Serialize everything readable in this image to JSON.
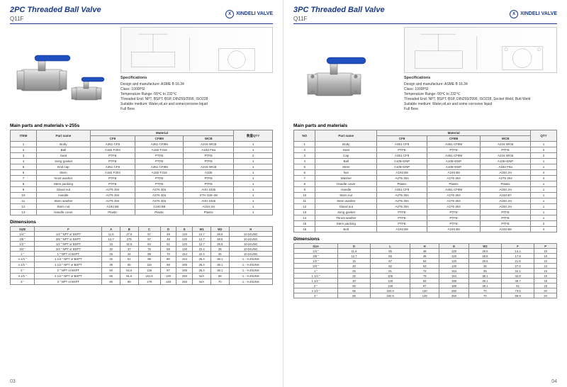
{
  "brand": {
    "logo": "X",
    "name": "XINDELI VALVE"
  },
  "colors": {
    "primary": "#1a3a8a",
    "metal": "#b8b8b8",
    "metal_light": "#d8d8d8",
    "metal_dark": "#888",
    "handle": "#2050c0"
  },
  "left": {
    "title": "2PC Threaded Ball Valve",
    "subtitle": "Q11F",
    "spec_title": "Specifications",
    "specs": [
      "Design and manufacture: ASME B 16.34",
      "Class: 1000PSI",
      "Temperature Range:-50℃ to 232℃",
      "Threaded End: NPT, BSPT, BSP, DIN259/2999, ISO228",
      "Suitable medium: Water,oil,air and somecorrosive liquid",
      "Full Bore"
    ],
    "parts_title": "Main parts and materials v-255s",
    "parts_headers": [
      "ITEM",
      "Part name",
      "CF8",
      "CF8M",
      "WCB",
      "数量QTY"
    ],
    "parts_rows": [
      [
        "1",
        "Body",
        "A351 CF8",
        "A351 CF8M",
        "A216 WCB",
        "1"
      ],
      [
        "2",
        "Ball",
        "A182 F304",
        "A182 F316",
        "A182 F6a",
        "1"
      ],
      [
        "3",
        "Seat",
        "PTFE",
        "PTFE",
        "PTFE",
        "2"
      ],
      [
        "4",
        "Joing gasket",
        "PTFE",
        "PTFE",
        "PTFE",
        "1"
      ],
      [
        "5",
        "End cap",
        "A351 CF8",
        "A351 CF8M",
        "A216 WCB",
        "1"
      ],
      [
        "6",
        "Stem",
        "A182 F304",
        "A182 F316",
        "A105",
        "1"
      ],
      [
        "7",
        "hrust washer",
        "PTFE",
        "PTFE",
        "PTFE",
        "1"
      ],
      [
        "8",
        "Stem packing",
        "PTFE",
        "PTFE",
        "PTFE",
        "1"
      ],
      [
        "9",
        "Gland nut",
        "A276 304",
        "A276 304",
        "AISI 1035",
        "1"
      ],
      [
        "10",
        "Handle",
        "A276 304",
        "A276 304",
        "XTH 330–08",
        "1"
      ],
      [
        "11",
        "Stem washer",
        "A276 304",
        "A276 304",
        "AISI 1025",
        "1"
      ],
      [
        "12",
        "Stem nut",
        "A193 B8",
        "A193 B8",
        "A194 2H",
        "1"
      ],
      [
        "13",
        "Handle cover",
        "Plastic",
        "Plastic",
        "Plastic",
        "1"
      ]
    ],
    "dim_title": "Dimensions",
    "dim_headers": [
      "SIZE",
      "F",
      "A",
      "B",
      "C",
      "D",
      "E",
      "W1",
      "W2",
      "H"
    ],
    "dim_rows": [
      [
        "1/4 \"",
        "1/4 \" NPT or BSPT",
        "11.6",
        "27.5",
        "57",
        "49",
        "120",
        "12.7",
        "28.5",
        "10-24UNC"
      ],
      [
        "3/8 \"",
        "3/8 \" NPT or BSPT",
        "12.7",
        "275",
        "57",
        "49",
        "120",
        "12.7",
        "28.5",
        "10-24UNC"
      ],
      [
        "1/2 \"",
        "1/2 \" NPT or BSPT",
        "15",
        "32.5",
        "64",
        "51",
        "120",
        "12.7",
        "28.5",
        "10-24UNC"
      ],
      [
        "3/4 \"",
        "3/4 \" NPT or BSPT",
        "20",
        "37",
        "75",
        "58",
        "130",
        "22.4",
        "35",
        "10-24UNC"
      ],
      [
        "1 \"",
        "1 \" NPT or BSPT",
        "25",
        "44",
        "88",
        "70",
        "154",
        "22.4",
        "35",
        "10-24UNC"
      ],
      [
        "1 1/4 \"",
        "1 1/4 \" NPT or BSPT",
        "32",
        "51",
        "99",
        "80",
        "154",
        "25.4",
        "38.1",
        "1／4-20UNS"
      ],
      [
        "1 1/2 \"",
        "1 1/2 \" NPT or BSPT",
        "38",
        "55",
        "116",
        "88",
        "185",
        "25.4",
        "38.1",
        "1／4-20UNS"
      ],
      [
        "2 \"",
        "2 \" NPT or BSPT",
        "50",
        "62.5",
        "136",
        "97",
        "185",
        "25.4",
        "38.1",
        "1／4-20UNS"
      ],
      [
        "2 1/2 \"",
        "2 1/2 \" NPT or BSPT",
        "65",
        "81.5",
        "161.5",
        "130",
        "250",
        "N/A",
        "58",
        "1／4-20UNS"
      ],
      [
        "3 \"",
        "3 \" NPT or BSPT",
        "80",
        "89",
        "178",
        "148",
        "250",
        "N/A",
        "70",
        "1／4-20UNS"
      ]
    ],
    "pagenum": "03"
  },
  "right": {
    "title": "3PC Threaded Ball Valve",
    "subtitle": "Q11F",
    "spec_title": "Specifications",
    "specs": [
      "Design and manufacture: ASME B 16.34",
      "Class: 1000PSI",
      "Temperature Range:-50℃ to 232℃",
      "Threaded End: NPT, BSPT, BSP, DIN259/2999, ISO228, Socket Weld, Butt Weld",
      "Suitable medium: Water,oil,air and some corrosive liquid",
      "Full Bore"
    ],
    "parts_title": "Main parts and materials",
    "parts_headers": [
      "NO",
      "Part name",
      "CF8",
      "CF8M",
      "WCB",
      "QTY"
    ],
    "parts_rows": [
      [
        "1",
        "Body",
        "A351 CF8",
        "A351 CF8M",
        "A216 WCB",
        "1"
      ],
      [
        "2",
        "Seat",
        "PTFE",
        "PTFE",
        "PTFE",
        "2"
      ],
      [
        "3",
        "Cap",
        "A351 CF8",
        "A351 CF8M",
        "A216 WCB",
        "2"
      ],
      [
        "4",
        "Ball",
        "A105+ENP",
        "A105+ENP",
        "A105+ENP",
        "1"
      ],
      [
        "5",
        "Stem",
        "A105+ENP",
        "A105+ENP",
        "A182 F6a",
        "1"
      ],
      [
        "6",
        "Nut",
        "A193 B8",
        "A193 B8",
        "A194 2H",
        "4"
      ],
      [
        "7",
        "Washer",
        "A276 304",
        "A276 304",
        "A276 304",
        "4"
      ],
      [
        "8",
        "Handle cover",
        "Plastic",
        "Plastic",
        "Plastic",
        "1"
      ],
      [
        "9",
        "Handle",
        "A351 CF8",
        "A351 CF8M",
        "A194 2H",
        "1"
      ],
      [
        "10",
        "Stem nut",
        "A276 304",
        "A276 304",
        "A193 B7",
        "1"
      ],
      [
        "11",
        "Stem washer",
        "A276 304",
        "A276 304",
        "A194 2H",
        "1"
      ],
      [
        "12",
        "Gland nut",
        "A276 304",
        "A276 304",
        "A194 2H",
        "1"
      ],
      [
        "13",
        "Joing gasket",
        "PTFE",
        "PTFE",
        "PTFE",
        "1"
      ],
      [
        "14",
        "Thrust washer",
        "PTFE",
        "PTFE",
        "PTFE",
        "1"
      ],
      [
        "15",
        "Stem packing",
        "PTFE",
        "PTFE",
        "PTFE",
        "2"
      ],
      [
        "16",
        "Bolt",
        "A193 B8",
        "A193 B8",
        "A193 B8",
        "4"
      ]
    ],
    "dim_title": "Dimensions",
    "dim_headers": [
      "Size",
      "D",
      "L",
      "H",
      "E",
      "W2",
      "F",
      "P"
    ],
    "dim_rows": [
      [
        "1/4 \"",
        "11.6",
        "65",
        "48",
        "120",
        "28.5",
        "14.1",
        "10"
      ],
      [
        "3/8 \"",
        "12.7",
        "65",
        "48",
        "120",
        "28.5",
        "17.8",
        "10"
      ],
      [
        "1/2 \"",
        "15",
        "67",
        "54",
        "120",
        "28.5",
        "21.8",
        "10"
      ],
      [
        "3/4 \"",
        "20",
        "82",
        "63",
        "130",
        "35",
        "27.6",
        "13"
      ],
      [
        "1 \"",
        "25",
        "91",
        "72",
        "154",
        "35",
        "34.1",
        "15"
      ],
      [
        "1 1/4 \"",
        "32",
        "106",
        "79",
        "154",
        "38.1",
        "42.8",
        "16"
      ],
      [
        "1 1/2 \"",
        "40",
        "129",
        "84",
        "185",
        "38.1",
        "48.7",
        "18"
      ],
      [
        "2 \"",
        "50",
        "148",
        "97",
        "185",
        "38.1",
        "61",
        "18"
      ],
      [
        "2 1/2 \"",
        "65",
        "184.5",
        "130",
        "250",
        "70",
        "73.5",
        "20"
      ],
      [
        "3 \"",
        "80",
        "182.5",
        "148",
        "250",
        "70",
        "89.9",
        "20"
      ]
    ],
    "pagenum": "04"
  }
}
